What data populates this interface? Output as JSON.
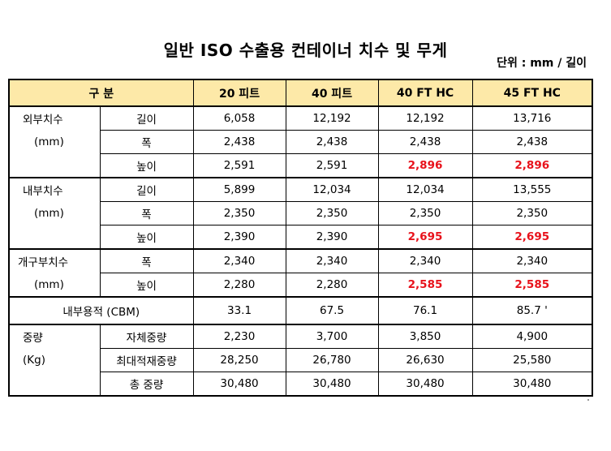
{
  "title": "일반 ISO 수출용 컨테이너 치수 및 무게",
  "unit": "단위 : mm / 길이",
  "headers": {
    "category": "구      분",
    "c1": "20 피트",
    "c2": "40 피트",
    "c3": "40 FT HC",
    "c4": "45 FT HC"
  },
  "colors": {
    "header_bg": "#fde9a8",
    "highlight": "#e8121b"
  },
  "groups": {
    "external": {
      "label": "외부치수",
      "sub": "(mm)"
    },
    "internal": {
      "label": "내부치수",
      "sub": "(mm)"
    },
    "opening": {
      "label": "개구부치수",
      "sub": "(mm)"
    },
    "weight": {
      "label": "중량",
      "sub": "(Kg)"
    }
  },
  "rows": [
    {
      "item": "길이",
      "v": [
        "6,058",
        "12,192",
        "12,192",
        "13,716"
      ]
    },
    {
      "item": "폭",
      "v": [
        "2,438",
        "2,438",
        "2,438",
        "2,438"
      ]
    },
    {
      "item": "높이",
      "v": [
        "2,591",
        "2,591",
        "2,896",
        "2,896"
      ]
    },
    {
      "item": "길이",
      "v": [
        "5,899",
        "12,034",
        "12,034",
        "13,555"
      ]
    },
    {
      "item": "폭",
      "v": [
        "2,350",
        "2,350",
        "2,350",
        "2,350"
      ]
    },
    {
      "item": "높이",
      "v": [
        "2,390",
        "2,390",
        "2,695",
        "2,695"
      ]
    },
    {
      "item": "폭",
      "v": [
        "2,340",
        "2,340",
        "2,340",
        "2,340"
      ]
    },
    {
      "item": "높이",
      "v": [
        "2,280",
        "2,280",
        "2,585",
        "2,585"
      ]
    },
    {
      "item": "내부용적 (CBM)",
      "v": [
        "33.1",
        "67.5",
        "76.1",
        "85.7 '"
      ]
    },
    {
      "item": "자체중량",
      "v": [
        "2,230",
        "3,700",
        "3,850",
        "4,900"
      ]
    },
    {
      "item": "최대적재중량",
      "v": [
        "28,250",
        "26,780",
        "26,630",
        "25,580"
      ]
    },
    {
      "item": "총 중량",
      "v": [
        "30,480",
        "30,480",
        "30,480",
        "30,480"
      ]
    }
  ]
}
